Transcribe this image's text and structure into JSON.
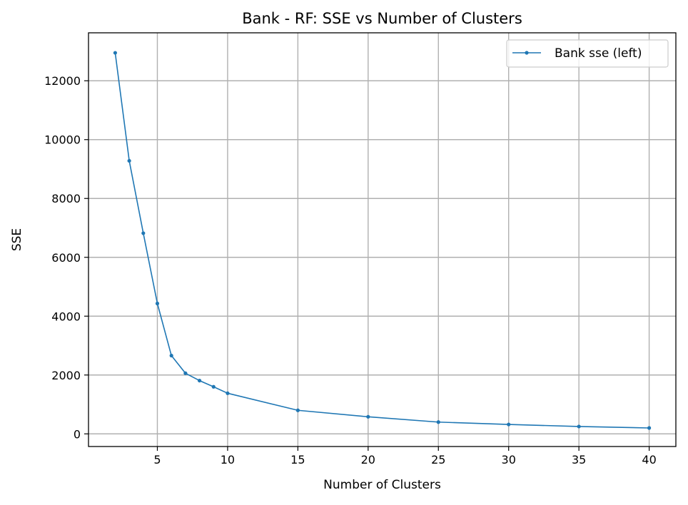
{
  "chart_data": {
    "type": "line",
    "title": "Bank - RF: SSE vs Number of Clusters",
    "xlabel": "Number of Clusters",
    "ylabel": "SSE",
    "xlim": [
      0.1,
      41.9
    ],
    "ylim": [
      -430,
      13630
    ],
    "xticks": [
      5,
      10,
      15,
      20,
      25,
      30,
      35,
      40
    ],
    "yticks": [
      0,
      2000,
      4000,
      6000,
      8000,
      10000,
      12000
    ],
    "grid": true,
    "legend_position": "top-right",
    "series": [
      {
        "name": "Bank sse (left)",
        "color": "#1f77b4",
        "marker": "circle",
        "x": [
          2,
          3,
          4,
          5,
          6,
          7,
          8,
          9,
          10,
          15,
          20,
          25,
          30,
          35,
          40
        ],
        "y": [
          12950,
          9280,
          6820,
          4430,
          2660,
          2060,
          1810,
          1600,
          1380,
          800,
          580,
          400,
          320,
          250,
          200
        ]
      }
    ]
  }
}
